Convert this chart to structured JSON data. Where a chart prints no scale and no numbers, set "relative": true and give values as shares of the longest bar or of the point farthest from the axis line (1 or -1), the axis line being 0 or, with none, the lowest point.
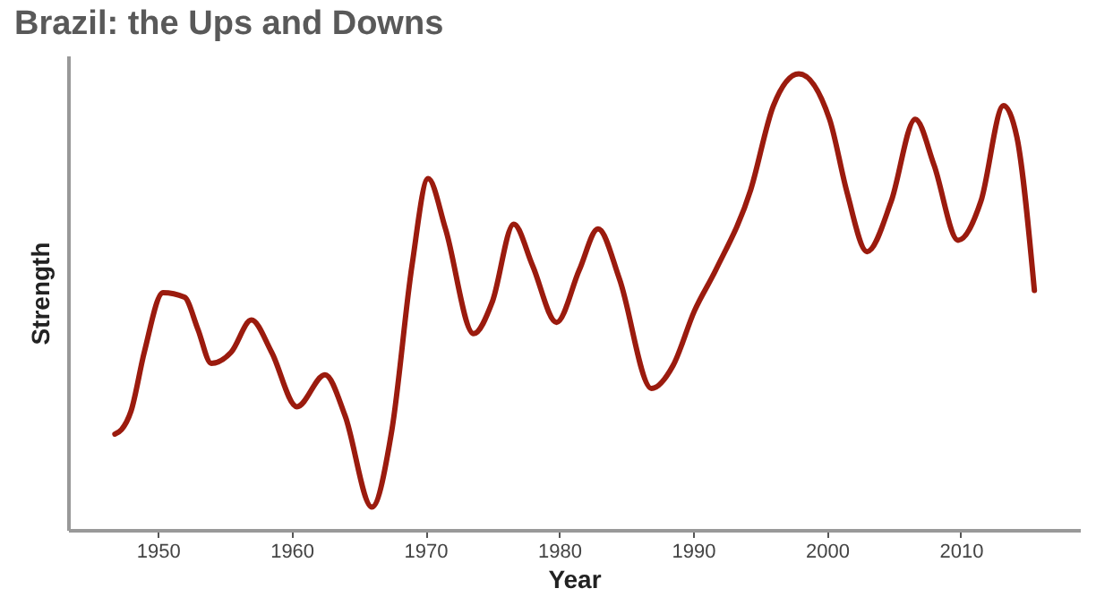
{
  "chart_data": {
    "type": "line",
    "title": "Brazil: the Ups and Downs",
    "xlabel": "Year",
    "ylabel": "Strength",
    "relative": true,
    "xlim": [
      1943.3,
      2018.9
    ],
    "xticks": [
      1950,
      1960,
      1970,
      1980,
      1990,
      2000,
      2010
    ],
    "grid": false,
    "legend": false,
    "marker": "none",
    "line_style": "solid",
    "x": [
      1946.8,
      1947.3,
      1948,
      1949,
      1950.4,
      1952,
      1953,
      1954,
      1955.5,
      1957,
      1958.5,
      1960.4,
      1962.5,
      1964,
      1966,
      1967.5,
      1969,
      1970.2,
      1971.5,
      1973.6,
      1975,
      1976.6,
      1978,
      1979.8,
      1981.5,
      1982.9,
      1984.5,
      1986.9,
      1988.5,
      1990.1,
      1991.7,
      1994.3,
      1996,
      1997.9,
      2000.2,
      2001.5,
      2003,
      2004.8,
      2006.6,
      2008,
      2009.8,
      2011.5,
      2013.2,
      2014.2,
      2015.5
    ],
    "series": [
      {
        "color": "#9b1b0e",
        "values": [
          0.21,
          0.22,
          0.26,
          0.39,
          0.52,
          0.51,
          0.44,
          0.365,
          0.39,
          0.46,
          0.39,
          0.27,
          0.34,
          0.25,
          0.05,
          0.22,
          0.58,
          0.77,
          0.66,
          0.43,
          0.5,
          0.67,
          0.58,
          0.455,
          0.57,
          0.66,
          0.55,
          0.31,
          0.36,
          0.48,
          0.57,
          0.745,
          0.93,
          1.0,
          0.9,
          0.74,
          0.61,
          0.72,
          0.9,
          0.8,
          0.635,
          0.72,
          0.93,
          0.86,
          0.525
        ]
      }
    ]
  }
}
